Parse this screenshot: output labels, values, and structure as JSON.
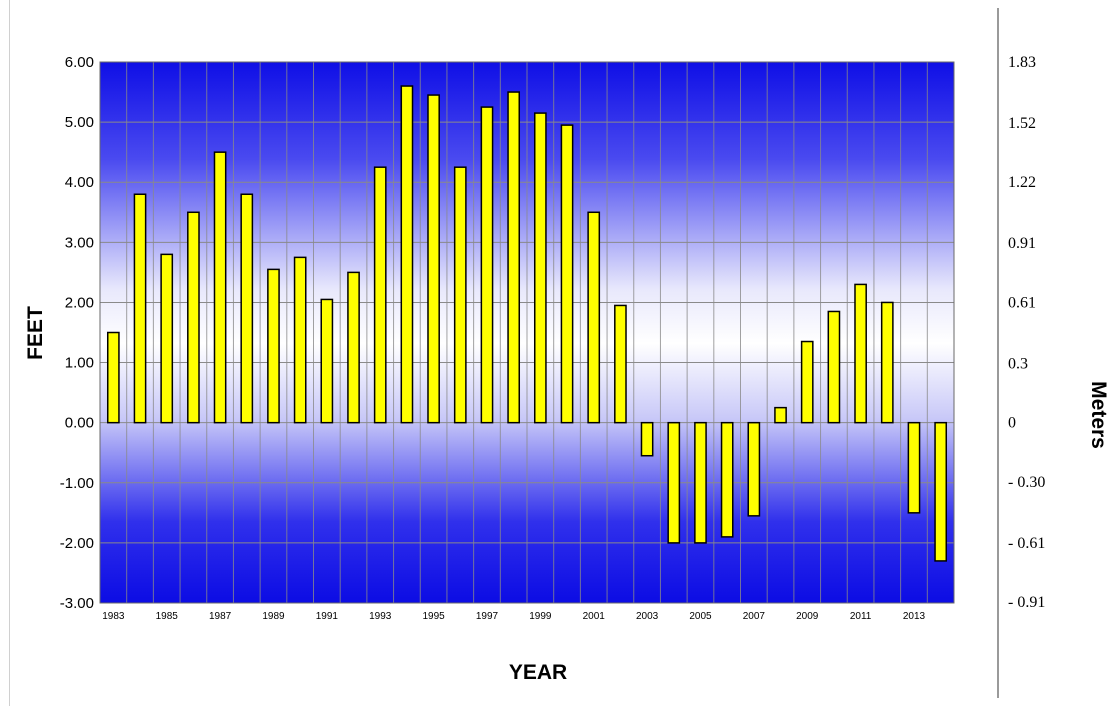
{
  "chart_data": {
    "type": "bar",
    "xlabel": "YEAR",
    "ylabel": "FEET",
    "y2label": "Meters",
    "ylim": [
      -3,
      6
    ],
    "yticks": [
      "6.00",
      "5.00",
      "4.00",
      "3.00",
      "2.00",
      "1.00",
      "0.00",
      "-1.00",
      "-2.00",
      "-3.00"
    ],
    "y2ticks": [
      {
        "label": "1.83",
        "value": 1.83
      },
      {
        "label": "1.52",
        "value": 1.52
      },
      {
        "label": "1.22",
        "value": 1.22
      },
      {
        "label": "0.91",
        "value": 0.91
      },
      {
        "label": "0.61",
        "value": 0.61
      },
      {
        "label": "0.3",
        "value": 0.3
      },
      {
        "label": "0",
        "value": 0
      },
      {
        "label": "- 0.30",
        "value": -0.3
      },
      {
        "label": "- 0.61",
        "value": -0.61
      },
      {
        "label": "- 0.91",
        "value": -0.91
      }
    ],
    "categories": [
      "1983",
      "1984",
      "1985",
      "1986",
      "1987",
      "1988",
      "1989",
      "1990",
      "1991",
      "1992",
      "1993",
      "1994",
      "1995",
      "1996",
      "1997",
      "1998",
      "1999",
      "2000",
      "2001",
      "2002",
      "2003",
      "2004",
      "2005",
      "2006",
      "2007",
      "2008",
      "2009",
      "2010",
      "2011",
      "2012",
      "2013",
      "2014"
    ],
    "xtick_labels": [
      "1983",
      "1985",
      "1987",
      "1989",
      "1991",
      "1993",
      "1995",
      "1997",
      "1999",
      "2001",
      "2003",
      "2005",
      "2007",
      "2009",
      "2011",
      "2013"
    ],
    "values": [
      1.5,
      3.8,
      2.8,
      3.5,
      4.5,
      3.8,
      2.55,
      2.75,
      2.05,
      2.5,
      4.25,
      5.6,
      5.45,
      4.25,
      5.25,
      5.5,
      5.15,
      4.95,
      3.5,
      1.95,
      -0.55,
      -2.0,
      -2.0,
      -1.9,
      -1.55,
      0.25,
      1.35,
      1.85,
      2.3,
      2.0,
      -1.5,
      -2.3
    ],
    "grid": true,
    "colors": {
      "bar": "#ffff00",
      "bar_edge": "#000000",
      "bg_edge": "#1010e8",
      "bg_center": "#ffffff",
      "grid": "#8a8a8a"
    }
  }
}
